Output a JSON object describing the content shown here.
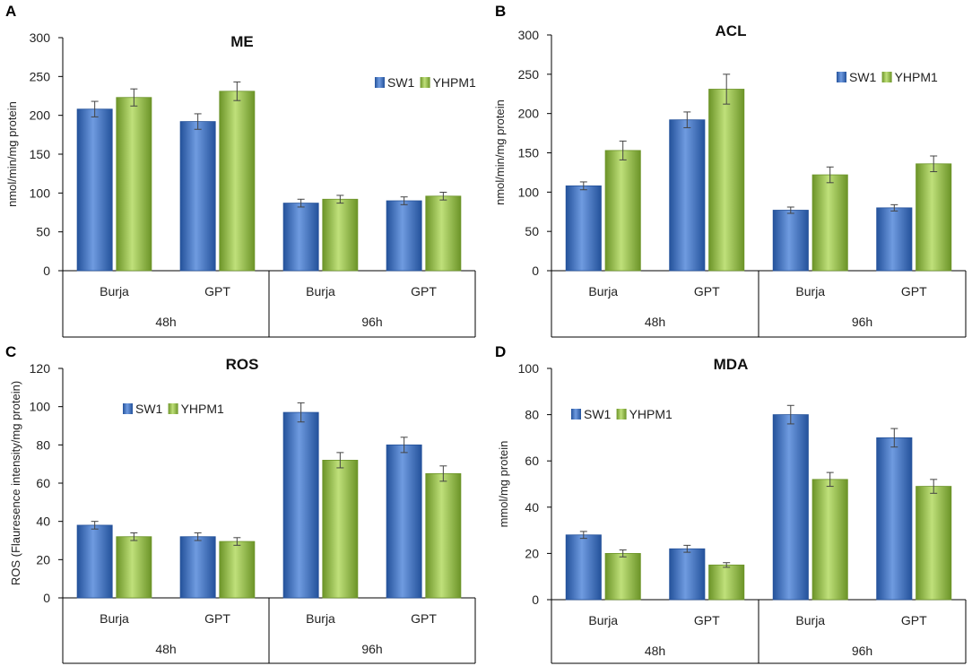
{
  "colors": {
    "sw1": "#3d72c4",
    "sw1_light": "#6f9be0",
    "sw1_dark": "#24529b",
    "yhpm1": "#93c047",
    "yhpm1_light": "#bfe07a",
    "yhpm1_dark": "#6c9428"
  },
  "chart_data": [
    {
      "panel": "A",
      "type": "bar",
      "title": "ME",
      "ylabel": "nmol/min/mg protein",
      "ylim": [
        0,
        300
      ],
      "yticks": [
        0,
        50,
        100,
        150,
        200,
        250,
        300
      ],
      "groups": [
        "48h",
        "96h"
      ],
      "categories": [
        "Burja",
        "GPT",
        "Burja",
        "GPT"
      ],
      "legend_position": "upper-right",
      "series": [
        {
          "name": "SW1",
          "values": [
            208,
            192,
            87,
            90
          ],
          "errors": [
            10,
            10,
            5,
            5
          ]
        },
        {
          "name": "YHPM1",
          "values": [
            223,
            231,
            92,
            96
          ],
          "errors": [
            11,
            12,
            5,
            5
          ]
        }
      ]
    },
    {
      "panel": "B",
      "type": "bar",
      "title": "ACL",
      "ylabel": "nmol/min/mg protein",
      "ylim": [
        0,
        300
      ],
      "yticks": [
        0,
        50,
        100,
        150,
        200,
        250,
        300
      ],
      "groups": [
        "48h",
        "96h"
      ],
      "categories": [
        "Burja",
        "GPT",
        "Burja",
        "GPT"
      ],
      "legend_position": "upper-right",
      "series": [
        {
          "name": "SW1",
          "values": [
            108,
            192,
            77,
            80
          ],
          "errors": [
            5,
            10,
            4,
            4
          ]
        },
        {
          "name": "YHPM1",
          "values": [
            153,
            231,
            122,
            136
          ],
          "errors": [
            12,
            19,
            10,
            10
          ]
        }
      ]
    },
    {
      "panel": "C",
      "type": "bar",
      "title": "ROS",
      "ylabel": "ROS (Flauresence intensity/mg protein)",
      "ylim": [
        0,
        120
      ],
      "yticks": [
        0,
        20,
        40,
        60,
        80,
        100,
        120
      ],
      "groups": [
        "48h",
        "96h"
      ],
      "categories": [
        "Burja",
        "GPT",
        "Burja",
        "GPT"
      ],
      "legend_position": "upper-left",
      "series": [
        {
          "name": "SW1",
          "values": [
            38,
            32,
            97,
            80
          ],
          "errors": [
            2,
            2,
            5,
            4
          ]
        },
        {
          "name": "YHPM1",
          "values": [
            32,
            29.5,
            72,
            65
          ],
          "errors": [
            2,
            2,
            4,
            4
          ]
        }
      ]
    },
    {
      "panel": "D",
      "type": "bar",
      "title": "MDA",
      "ylabel": "mmol/mg protein",
      "ylim": [
        0,
        100
      ],
      "yticks": [
        0,
        20,
        40,
        60,
        80,
        100
      ],
      "groups": [
        "48h",
        "96h"
      ],
      "categories": [
        "Burja",
        "GPT",
        "Burja",
        "GPT"
      ],
      "legend_position": "upper-left",
      "series": [
        {
          "name": "SW1",
          "values": [
            28,
            22,
            80,
            70
          ],
          "errors": [
            1.5,
            1.5,
            4,
            4
          ]
        },
        {
          "name": "YHPM1",
          "values": [
            20,
            15,
            52,
            49
          ],
          "errors": [
            1.5,
            1,
            3,
            3
          ]
        }
      ]
    }
  ]
}
